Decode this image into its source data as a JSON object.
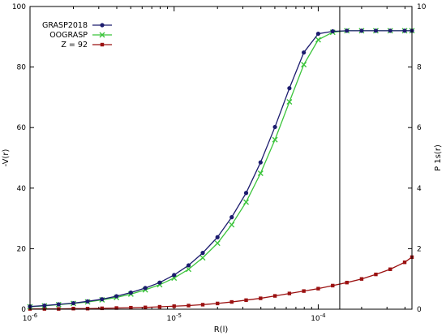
{
  "chart_data": {
    "type": "line",
    "title": "",
    "xlabel": "R(l)",
    "ylabel_left": "-V(r)",
    "ylabel_right": "P 1s(r)",
    "x_scale": "log",
    "xlim": [
      1e-06,
      0.000447
    ],
    "ylim_left": [
      0,
      100
    ],
    "ylim_right": [
      0,
      10
    ],
    "x_ticks": [
      {
        "value": 1e-06,
        "base": "10",
        "exp": "-6"
      },
      {
        "value": 1e-05,
        "base": "10",
        "exp": "-5"
      },
      {
        "value": 0.0001,
        "base": "10",
        "exp": "-4"
      }
    ],
    "y_ticks_left": [
      "0",
      "20",
      "40",
      "60",
      "80",
      "100"
    ],
    "y_ticks_right": [
      "0",
      "2",
      "4",
      "6",
      "8",
      "10"
    ],
    "vertical_line_x": 0.000141,
    "legend_position": "top-left",
    "series": [
      {
        "name": "GRASP2018",
        "axis": "left",
        "color": "#1c1c6e",
        "marker": "circle",
        "x": [
          1e-06,
          1.26e-06,
          1.58e-06,
          2e-06,
          2.51e-06,
          3.16e-06,
          3.98e-06,
          5.01e-06,
          6.31e-06,
          7.94e-06,
          1e-05,
          1.26e-05,
          1.58e-05,
          2e-05,
          2.51e-05,
          3.16e-05,
          3.98e-05,
          5.01e-05,
          6.31e-05,
          7.94e-05,
          0.0001,
          0.000126,
          0.000158,
          0.0002,
          0.000251,
          0.000316,
          0.000398,
          0.000447
        ],
        "y": [
          0.9,
          1.2,
          1.6,
          2.0,
          2.6,
          3.3,
          4.3,
          5.5,
          7.0,
          8.8,
          11.3,
          14.5,
          18.6,
          23.8,
          30.4,
          38.4,
          48.5,
          60.2,
          73.0,
          84.8,
          91.0,
          91.8,
          92.0,
          92.0,
          92.0,
          92.0,
          92.0,
          92.0
        ]
      },
      {
        "name": "OOGRASP",
        "axis": "left",
        "color": "#3bc43b",
        "marker": "x",
        "x": [
          1e-06,
          1.26e-06,
          1.58e-06,
          2e-06,
          2.51e-06,
          3.16e-06,
          3.98e-06,
          5.01e-06,
          6.31e-06,
          7.94e-06,
          1e-05,
          1.26e-05,
          1.58e-05,
          2e-05,
          2.51e-05,
          3.16e-05,
          3.98e-05,
          5.01e-05,
          6.31e-05,
          7.94e-05,
          0.0001,
          0.000126,
          0.000158,
          0.0002,
          0.000251,
          0.000316,
          0.000398,
          0.000447
        ],
        "y": [
          0.8,
          1.1,
          1.5,
          1.9,
          2.4,
          3.1,
          3.9,
          5.0,
          6.4,
          8.1,
          10.3,
          13.2,
          17.0,
          21.8,
          27.9,
          35.4,
          44.9,
          56.0,
          68.5,
          80.8,
          89.0,
          91.5,
          92.0,
          92.0,
          92.0,
          92.0,
          92.0,
          92.0
        ]
      },
      {
        "name": "Z = 92",
        "axis": "right",
        "color": "#9b1111",
        "marker": "square",
        "x": [
          1e-06,
          1.26e-06,
          1.58e-06,
          2e-06,
          2.51e-06,
          3.16e-06,
          3.98e-06,
          5.01e-06,
          6.31e-06,
          7.94e-06,
          1e-05,
          1.26e-05,
          1.58e-05,
          2e-05,
          2.51e-05,
          3.16e-05,
          3.98e-05,
          5.01e-05,
          6.31e-05,
          7.94e-05,
          0.0001,
          0.000126,
          0.000158,
          0.0002,
          0.000251,
          0.000316,
          0.000398,
          0.000447
        ],
        "y": [
          0.01,
          0.01,
          0.01,
          0.02,
          0.02,
          0.03,
          0.04,
          0.05,
          0.06,
          0.08,
          0.1,
          0.12,
          0.15,
          0.19,
          0.24,
          0.3,
          0.36,
          0.44,
          0.52,
          0.6,
          0.68,
          0.78,
          0.88,
          1.0,
          1.15,
          1.32,
          1.55,
          1.72
        ]
      }
    ]
  }
}
